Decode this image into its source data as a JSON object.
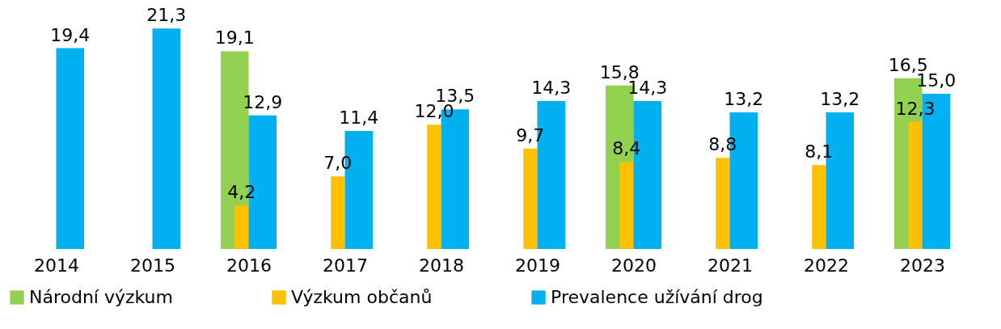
{
  "chart_data": {
    "type": "bar",
    "categories": [
      "2014",
      "2015",
      "2016",
      "2017",
      "2018",
      "2019",
      "2020",
      "2021",
      "2022",
      "2023"
    ],
    "series": [
      {
        "name": "Národní výzkum",
        "color": "#92d050",
        "values": [
          null,
          null,
          19.1,
          null,
          null,
          null,
          15.8,
          null,
          null,
          16.5
        ],
        "value_labels": [
          null,
          null,
          "19,1",
          null,
          null,
          null,
          "15,8",
          null,
          null,
          "16,5"
        ]
      },
      {
        "name": "Výzkum občanů",
        "color": "#ffc000",
        "values": [
          null,
          null,
          4.2,
          7.0,
          12.0,
          9.7,
          8.4,
          8.8,
          8.1,
          12.3
        ],
        "value_labels": [
          null,
          null,
          "4,2",
          "7,0",
          "12,0",
          "9,7",
          "8,4",
          "8,8",
          "8,1",
          "12,3"
        ]
      },
      {
        "name": "Prevalence užívání drog",
        "color": "#00b0f0",
        "values": [
          19.4,
          21.3,
          12.9,
          11.4,
          13.5,
          14.3,
          14.3,
          13.2,
          13.2,
          15.0
        ],
        "value_labels": [
          "19,4",
          "21,3",
          "12,9",
          "11,4",
          "13,5",
          "14,3",
          "14,3",
          "13,2",
          "13,2",
          "15,0"
        ]
      }
    ],
    "legend": "bottom"
  }
}
